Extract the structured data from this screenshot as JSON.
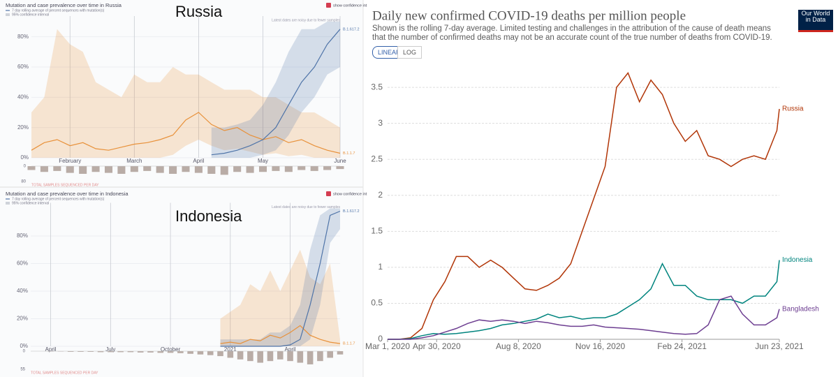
{
  "chart_data": [
    {
      "type": "area",
      "title": "Mutation and case prevalence over time in Russia",
      "country_label": "Russia",
      "legend_line": "7 day rolling average of percent sequences with mutation(s)",
      "legend_band": "95% confidence interval",
      "toggle_label": "show confidence int",
      "note": "Latest dates are noisy due to fewer samples",
      "categories": [
        null,
        null,
        null,
        "February",
        null,
        null,
        null,
        null,
        "March",
        null,
        null,
        null,
        null,
        "April",
        null,
        null,
        null,
        null,
        "May",
        null,
        null,
        null,
        null,
        null,
        "June"
      ],
      "ylim": [
        0,
        90
      ],
      "yticks": [
        {
          "value": 0,
          "label": "0%"
        },
        {
          "value": 20,
          "label": "20%"
        },
        {
          "value": 40,
          "label": "40%"
        },
        {
          "value": 60,
          "label": "60%"
        },
        {
          "value": 80,
          "label": "80%"
        }
      ],
      "series": [
        {
          "name": "B.1.1.7",
          "color": "#e8913a",
          "values": [
            5,
            10,
            12,
            8,
            10,
            6,
            5,
            7,
            9,
            10,
            12,
            15,
            25,
            30,
            22,
            18,
            20,
            15,
            12,
            14,
            10,
            12,
            8,
            5,
            3
          ],
          "upper": [
            30,
            40,
            85,
            75,
            70,
            50,
            45,
            40,
            55,
            50,
            50,
            60,
            55,
            55,
            50,
            45,
            45,
            45,
            40,
            40,
            35,
            30,
            30,
            25,
            20
          ],
          "lower": [
            0,
            0,
            0,
            0,
            0,
            0,
            0,
            0,
            0,
            0,
            0,
            2,
            8,
            12,
            8,
            5,
            6,
            4,
            2,
            3,
            1,
            2,
            0,
            0,
            0
          ]
        },
        {
          "name": "B.1.617.2",
          "color": "#4f74a8",
          "values": [
            null,
            null,
            null,
            null,
            null,
            null,
            null,
            null,
            null,
            null,
            null,
            null,
            null,
            null,
            2,
            3,
            5,
            8,
            12,
            20,
            35,
            50,
            60,
            75,
            85
          ],
          "upper": [
            null,
            null,
            null,
            null,
            null,
            null,
            null,
            null,
            null,
            null,
            null,
            null,
            null,
            null,
            20,
            20,
            22,
            25,
            35,
            50,
            70,
            85,
            85,
            90,
            90
          ],
          "lower": [
            null,
            null,
            null,
            null,
            null,
            null,
            null,
            null,
            null,
            null,
            null,
            null,
            null,
            null,
            0,
            0,
            0,
            0,
            2,
            5,
            15,
            30,
            40,
            55,
            60
          ]
        }
      ],
      "samples": {
        "label": "TOTAL SAMPLES SEQUENCED PER DAY",
        "color": "#b9aca6",
        "ylim": [
          0,
          80
        ],
        "yticks": [
          0,
          80
        ],
        "values": [
          20,
          30,
          25,
          35,
          40,
          30,
          35,
          40,
          30,
          25,
          35,
          40,
          30,
          35,
          40,
          45,
          30,
          35,
          30,
          25,
          30,
          20,
          25,
          20,
          15
        ]
      }
    },
    {
      "type": "area",
      "title": "Mutation and case prevalence over time in Indonesia",
      "country_label": "Indonesia",
      "legend_line": "7 day rolling average of percent sequences with mutation(s)",
      "legend_band": "95% confidence interval",
      "toggle_label": "show confidence int",
      "note": "Latest dates are noisy due to fewer samples",
      "categories": [
        null,
        null,
        "April",
        null,
        null,
        null,
        null,
        null,
        "July",
        null,
        null,
        null,
        null,
        null,
        "October",
        null,
        null,
        null,
        null,
        null,
        "2021",
        null,
        null,
        null,
        null,
        null,
        "April",
        null,
        null,
        null,
        null,
        null
      ],
      "ylim": [
        0,
        100
      ],
      "yticks": [
        {
          "value": 0,
          "label": "0%"
        },
        {
          "value": 20,
          "label": "20%"
        },
        {
          "value": 40,
          "label": "40%"
        },
        {
          "value": 60,
          "label": "60%"
        },
        {
          "value": 80,
          "label": "80%"
        }
      ],
      "series": [
        {
          "name": "B.1.1.7",
          "color": "#e8913a",
          "values": [
            null,
            null,
            null,
            null,
            null,
            null,
            null,
            null,
            null,
            null,
            null,
            null,
            null,
            null,
            null,
            null,
            null,
            null,
            null,
            2,
            3,
            2,
            5,
            4,
            8,
            6,
            10,
            15,
            8,
            5,
            3,
            2
          ],
          "upper": [
            null,
            null,
            null,
            null,
            null,
            null,
            null,
            null,
            null,
            null,
            null,
            null,
            null,
            null,
            null,
            null,
            null,
            null,
            null,
            20,
            25,
            30,
            45,
            40,
            55,
            40,
            55,
            70,
            50,
            45,
            60,
            5
          ],
          "lower": [
            null,
            null,
            null,
            null,
            null,
            null,
            null,
            null,
            null,
            null,
            null,
            null,
            null,
            null,
            null,
            null,
            null,
            null,
            null,
            0,
            0,
            0,
            0,
            0,
            0,
            0,
            0,
            0,
            0,
            0,
            0,
            0
          ]
        },
        {
          "name": "B.1.617.2",
          "color": "#4f74a8",
          "values": [
            null,
            null,
            null,
            null,
            null,
            null,
            null,
            null,
            null,
            null,
            null,
            null,
            null,
            null,
            null,
            null,
            null,
            null,
            null,
            0,
            0,
            0,
            0,
            0,
            0,
            0,
            1,
            5,
            30,
            60,
            95,
            98
          ],
          "upper": [
            null,
            null,
            null,
            null,
            null,
            null,
            null,
            null,
            null,
            null,
            null,
            null,
            null,
            null,
            null,
            null,
            null,
            null,
            null,
            5,
            5,
            5,
            5,
            5,
            10,
            10,
            15,
            30,
            70,
            95,
            100,
            100
          ],
          "lower": [
            null,
            null,
            null,
            null,
            null,
            null,
            null,
            null,
            null,
            null,
            null,
            null,
            null,
            null,
            null,
            null,
            null,
            null,
            null,
            0,
            0,
            0,
            0,
            0,
            0,
            0,
            0,
            0,
            5,
            30,
            75,
            85
          ]
        }
      ],
      "samples": {
        "label": "TOTAL SAMPLES SEQUENCED PER DAY",
        "color": "#b9aca6",
        "ylim": [
          0,
          55
        ],
        "yticks": [
          0,
          55
        ],
        "values": [
          0,
          0,
          1,
          1,
          2,
          2,
          2,
          3,
          3,
          3,
          3,
          4,
          4,
          5,
          5,
          6,
          8,
          10,
          12,
          15,
          20,
          25,
          30,
          35,
          30,
          25,
          30,
          35,
          40,
          30,
          20,
          10
        ]
      }
    },
    {
      "type": "line",
      "title": "Daily new confirmed COVID-19 deaths per million people",
      "subtitle": "Shown is the rolling 7-day average. Limited testing and challenges in the attribution of the cause of death means that the number of confirmed deaths may not be an accurate count of the true number of deaths from COVID-19.",
      "source_logo": "Our World in Data",
      "scale_buttons": [
        "LINEAR",
        "LOG"
      ],
      "log_scale": false,
      "grid": true,
      "x": [
        "2020-03-01",
        "2020-03-15",
        "2020-03-29",
        "2020-04-12",
        "2020-04-26",
        "2020-05-10",
        "2020-05-24",
        "2020-06-07",
        "2020-06-21",
        "2020-07-05",
        "2020-07-19",
        "2020-08-02",
        "2020-08-16",
        "2020-08-30",
        "2020-09-13",
        "2020-09-27",
        "2020-10-11",
        "2020-10-25",
        "2020-11-08",
        "2020-11-22",
        "2020-12-06",
        "2020-12-20",
        "2021-01-03",
        "2021-01-17",
        "2021-01-31",
        "2021-02-14",
        "2021-02-28",
        "2021-03-14",
        "2021-03-28",
        "2021-04-11",
        "2021-04-25",
        "2021-05-09",
        "2021-05-23",
        "2021-06-06",
        "2021-06-20",
        "2021-06-23"
      ],
      "xlim": [
        "2020-03-01",
        "2021-06-23"
      ],
      "xticks": [
        {
          "value": "2020-03-01",
          "label": "Mar 1, 2020"
        },
        {
          "value": "2020-04-30",
          "label": "Apr 30, 2020"
        },
        {
          "value": "2020-08-08",
          "label": "Aug 8, 2020"
        },
        {
          "value": "2020-11-16",
          "label": "Nov 16, 2020"
        },
        {
          "value": "2021-02-24",
          "label": "Feb 24, 2021"
        },
        {
          "value": "2021-06-23",
          "label": "Jun 23, 2021"
        }
      ],
      "ylim": [
        0,
        3.8
      ],
      "yticks": [
        0,
        0.5,
        1,
        1.5,
        2,
        2.5,
        3,
        3.5
      ],
      "series": [
        {
          "name": "Russia",
          "color": "#b13507",
          "values": [
            0,
            0,
            0.02,
            0.15,
            0.55,
            0.8,
            1.15,
            1.15,
            1.0,
            1.1,
            1.0,
            0.85,
            0.7,
            0.68,
            0.75,
            0.85,
            1.05,
            1.5,
            1.95,
            2.4,
            3.5,
            3.7,
            3.3,
            3.6,
            3.4,
            3.0,
            2.75,
            2.9,
            2.55,
            2.5,
            2.4,
            2.5,
            2.55,
            2.5,
            2.9,
            3.2
          ]
        },
        {
          "name": "Indonesia",
          "color": "#00847e",
          "values": [
            0,
            0,
            0.01,
            0.05,
            0.08,
            0.07,
            0.08,
            0.1,
            0.12,
            0.15,
            0.2,
            0.22,
            0.25,
            0.28,
            0.35,
            0.3,
            0.32,
            0.28,
            0.3,
            0.3,
            0.35,
            0.45,
            0.55,
            0.7,
            1.05,
            0.75,
            0.75,
            0.6,
            0.55,
            0.55,
            0.55,
            0.5,
            0.6,
            0.6,
            0.8,
            1.1
          ]
        },
        {
          "name": "Bangladesh",
          "color": "#6d3e91",
          "values": [
            0,
            0,
            0,
            0.02,
            0.05,
            0.1,
            0.15,
            0.22,
            0.27,
            0.25,
            0.27,
            0.25,
            0.22,
            0.25,
            0.23,
            0.2,
            0.18,
            0.18,
            0.2,
            0.17,
            0.16,
            0.15,
            0.14,
            0.12,
            0.1,
            0.08,
            0.07,
            0.08,
            0.2,
            0.55,
            0.6,
            0.35,
            0.2,
            0.2,
            0.3,
            0.42
          ]
        }
      ]
    }
  ]
}
